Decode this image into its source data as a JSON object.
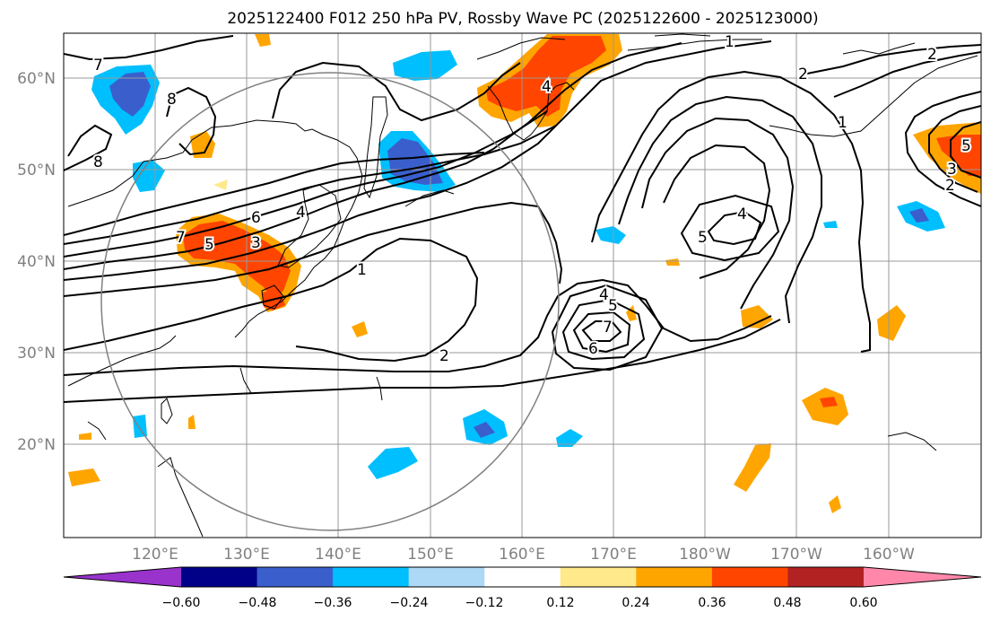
{
  "title": "2025122400 F012 250 hPa PV, Rossby Wave PC (2025122600 - 2025123000)",
  "lat_ticks": [
    "60°N",
    "50°N",
    "40°N",
    "30°N",
    "20°N"
  ],
  "lon_ticks": [
    "120°E",
    "130°E",
    "140°E",
    "150°E",
    "160°E",
    "170°E",
    "180°W",
    "170°W",
    "160°W"
  ],
  "colorbar": {
    "tick_labels": [
      "−0.60",
      "−0.48",
      "−0.36",
      "−0.24",
      "−0.12",
      "0.12",
      "0.24",
      "0.36",
      "0.48",
      "0.60"
    ],
    "colors": [
      "#9933cc",
      "#000088",
      "#3a5fcd",
      "#00bfff",
      "#add8f6",
      "#ffffff",
      "#ffe98a",
      "#ffa500",
      "#ff4500",
      "#b22222",
      "#ff88aa"
    ]
  },
  "contour_labels": [
    "7",
    "8",
    "8",
    "6",
    "4",
    "5",
    "7",
    "3",
    "1",
    "2",
    "1",
    "2",
    "1",
    "4",
    "5",
    "4",
    "5",
    "7",
    "6",
    "4",
    "5",
    "3",
    "2",
    "2"
  ],
  "colors": {
    "blue_fill": "#00bfff",
    "dark_blue_fill": "#3a5fcd",
    "orange_fill": "#ffa500",
    "red_fill": "#ff4500",
    "pale_yellow_fill": "#ffe98a",
    "grid": "#999999",
    "circle": "#808080"
  }
}
